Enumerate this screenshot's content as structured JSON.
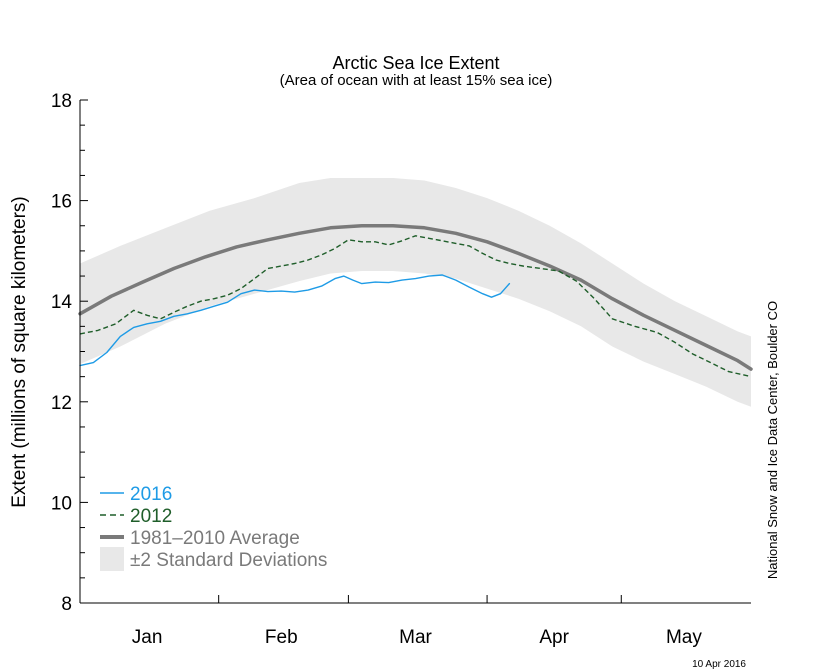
{
  "chart_data": {
    "type": "line",
    "title": "Arctic Sea Ice Extent",
    "subtitle": "(Area of ocean with at least 15% sea ice)",
    "ylabel": "Extent (millions of square kilometers)",
    "xlabel": "",
    "ylim": [
      8,
      18
    ],
    "xlim": [
      1,
      151
    ],
    "x_unit": "day of year",
    "y_ticks": [
      {
        "value": 8,
        "label": "8"
      },
      {
        "value": 10,
        "label": "10"
      },
      {
        "value": 12,
        "label": "12"
      },
      {
        "value": 14,
        "label": "14"
      },
      {
        "value": 16,
        "label": "16"
      },
      {
        "value": 18,
        "label": "18"
      }
    ],
    "x_month_boundaries": [
      32,
      61,
      92,
      122
    ],
    "x_month_labels": [
      {
        "label": "Jan",
        "day": 16
      },
      {
        "label": "Feb",
        "day": 46
      },
      {
        "label": "Mar",
        "day": 76
      },
      {
        "label": "Apr",
        "day": 107
      },
      {
        "label": "May",
        "day": 136
      }
    ],
    "grid": false,
    "legend_position": "bottom-left",
    "series": [
      {
        "name": "2016",
        "style": "solid",
        "color": "#1e9be6",
        "points": [
          [
            1,
            12.72
          ],
          [
            4,
            12.78
          ],
          [
            7,
            12.98
          ],
          [
            10,
            13.3
          ],
          [
            13,
            13.48
          ],
          [
            16,
            13.55
          ],
          [
            19,
            13.6
          ],
          [
            22,
            13.7
          ],
          [
            25,
            13.75
          ],
          [
            28,
            13.82
          ],
          [
            31,
            13.9
          ],
          [
            34,
            13.98
          ],
          [
            37,
            14.15
          ],
          [
            40,
            14.22
          ],
          [
            43,
            14.19
          ],
          [
            46,
            14.2
          ],
          [
            49,
            14.18
          ],
          [
            52,
            14.22
          ],
          [
            55,
            14.3
          ],
          [
            58,
            14.45
          ],
          [
            60,
            14.5
          ],
          [
            62,
            14.42
          ],
          [
            64,
            14.35
          ],
          [
            67,
            14.38
          ],
          [
            70,
            14.37
          ],
          [
            73,
            14.42
          ],
          [
            76,
            14.45
          ],
          [
            79,
            14.5
          ],
          [
            82,
            14.52
          ],
          [
            85,
            14.42
          ],
          [
            88,
            14.28
          ],
          [
            91,
            14.15
          ],
          [
            93,
            14.08
          ],
          [
            95,
            14.15
          ],
          [
            97,
            14.35
          ]
        ]
      },
      {
        "name": "2012",
        "style": "dashed",
        "color": "#1f5e2a",
        "points": [
          [
            1,
            13.35
          ],
          [
            5,
            13.42
          ],
          [
            9,
            13.55
          ],
          [
            13,
            13.82
          ],
          [
            16,
            13.72
          ],
          [
            19,
            13.65
          ],
          [
            22,
            13.78
          ],
          [
            25,
            13.9
          ],
          [
            28,
            14.0
          ],
          [
            31,
            14.05
          ],
          [
            34,
            14.12
          ],
          [
            37,
            14.25
          ],
          [
            40,
            14.45
          ],
          [
            43,
            14.65
          ],
          [
            46,
            14.7
          ],
          [
            49,
            14.75
          ],
          [
            52,
            14.82
          ],
          [
            55,
            14.92
          ],
          [
            58,
            15.05
          ],
          [
            61,
            15.22
          ],
          [
            64,
            15.18
          ],
          [
            67,
            15.18
          ],
          [
            70,
            15.12
          ],
          [
            73,
            15.2
          ],
          [
            76,
            15.3
          ],
          [
            79,
            15.25
          ],
          [
            82,
            15.2
          ],
          [
            85,
            15.15
          ],
          [
            88,
            15.1
          ],
          [
            91,
            14.95
          ],
          [
            94,
            14.82
          ],
          [
            97,
            14.75
          ],
          [
            100,
            14.7
          ],
          [
            104,
            14.65
          ],
          [
            108,
            14.6
          ],
          [
            112,
            14.4
          ],
          [
            116,
            14.05
          ],
          [
            120,
            13.65
          ],
          [
            125,
            13.5
          ],
          [
            130,
            13.38
          ],
          [
            134,
            13.18
          ],
          [
            138,
            12.95
          ],
          [
            142,
            12.78
          ],
          [
            146,
            12.6
          ],
          [
            151,
            12.5
          ]
        ]
      },
      {
        "name": "1981–2010 Average",
        "style": "thick",
        "color": "#7a7a7a",
        "points": [
          [
            1,
            13.75
          ],
          [
            8,
            14.1
          ],
          [
            15,
            14.38
          ],
          [
            22,
            14.65
          ],
          [
            29,
            14.88
          ],
          [
            36,
            15.08
          ],
          [
            43,
            15.22
          ],
          [
            50,
            15.35
          ],
          [
            57,
            15.46
          ],
          [
            64,
            15.5
          ],
          [
            71,
            15.5
          ],
          [
            78,
            15.46
          ],
          [
            85,
            15.35
          ],
          [
            92,
            15.18
          ],
          [
            99,
            14.95
          ],
          [
            106,
            14.7
          ],
          [
            113,
            14.42
          ],
          [
            120,
            14.05
          ],
          [
            127,
            13.72
          ],
          [
            134,
            13.42
          ],
          [
            141,
            13.12
          ],
          [
            148,
            12.82
          ],
          [
            151,
            12.65
          ]
        ]
      }
    ],
    "band": {
      "name": "±2 Standard Deviations",
      "color": "#e8e8e8",
      "points": [
        [
          1,
          14.75,
          12.75
        ],
        [
          10,
          15.1,
          13.1
        ],
        [
          20,
          15.45,
          13.55
        ],
        [
          30,
          15.8,
          13.9
        ],
        [
          40,
          16.05,
          14.15
        ],
        [
          50,
          16.35,
          14.4
        ],
        [
          57,
          16.45,
          14.55
        ],
        [
          64,
          16.45,
          14.6
        ],
        [
          71,
          16.45,
          14.6
        ],
        [
          78,
          16.4,
          14.55
        ],
        [
          85,
          16.25,
          14.45
        ],
        [
          92,
          16.05,
          14.25
        ],
        [
          99,
          15.8,
          14.05
        ],
        [
          106,
          15.5,
          13.8
        ],
        [
          113,
          15.15,
          13.5
        ],
        [
          120,
          14.75,
          13.1
        ],
        [
          127,
          14.35,
          12.8
        ],
        [
          134,
          14.0,
          12.55
        ],
        [
          141,
          13.7,
          12.3
        ],
        [
          148,
          13.4,
          12.0
        ],
        [
          151,
          13.3,
          11.9
        ]
      ]
    },
    "annotations": [
      "National Snow and Ice Data Center, Boulder CO",
      "10 Apr 2016"
    ]
  }
}
